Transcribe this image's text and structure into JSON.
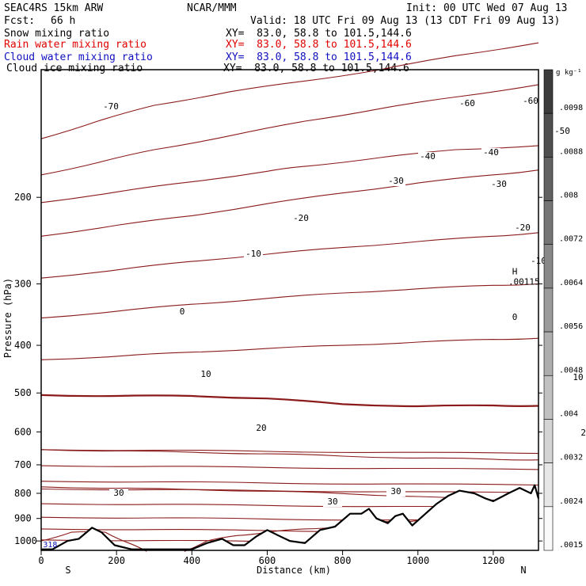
{
  "header": {
    "model": "SEAC4RS 15km ARW",
    "org": "NCAR/MMM",
    "init": "Init: 00 UTC Wed 07 Aug 13",
    "fcst_label": "Fcst:",
    "fcst_value": "66 h",
    "valid": "Valid: 18 UTC Fri 09 Aug 13 (13 CDT Fri 09 Aug 13)"
  },
  "fields": [
    {
      "name": "Snow mixing ratio",
      "xy": "XY=  83.0, 58.8 to 101.5,144.6",
      "color": "#000000"
    },
    {
      "name": "Rain water mixing ratio",
      "xy": "XY=  83.0, 58.8 to 101.5,144.6",
      "color": "#e00000"
    },
    {
      "name": "Cloud water mixing ratio",
      "xy": "XY=  83.0, 58.8 to 101.5,144.6",
      "color": "#1010c0"
    },
    {
      "name": "Cloud ice mixing ratio",
      "xy": "XY=  83.0, 58.8 to 101.5,144.6",
      "color": "#000000"
    }
  ],
  "chart_data": {
    "type": "line",
    "subtype": "vertical cross-section, temperature contours (deg C)",
    "xlabel": "Distance (km)",
    "ylabel": "Pressure (hPa)",
    "x_ticks": [
      0,
      200,
      400,
      600,
      800,
      1000,
      1200
    ],
    "y_ticks": [
      200,
      300,
      400,
      500,
      600,
      700,
      800,
      900,
      1000
    ],
    "xlim": [
      0,
      1320
    ],
    "ylim": [
      1045,
      110
    ],
    "y_scale": "log",
    "end_labels": {
      "left": "S",
      "right": "N"
    },
    "contour_color": "#8b1a1a",
    "isotherms": [
      {
        "level": -70,
        "label": "-70",
        "pts": [
          [
            0,
            152
          ],
          [
            150,
            140
          ],
          [
            300,
            130
          ],
          [
            500,
            122
          ],
          [
            700,
            116
          ],
          [
            900,
            110
          ],
          [
            1100,
            103
          ],
          [
            1320,
            97
          ]
        ],
        "labels": [
          [
            140,
            138
          ]
        ]
      },
      {
        "level": -60,
        "label": "-60",
        "pts": [
          [
            0,
            180
          ],
          [
            150,
            170
          ],
          [
            300,
            160
          ],
          [
            500,
            150
          ],
          [
            700,
            140
          ],
          [
            900,
            132
          ],
          [
            1100,
            125
          ],
          [
            1320,
            118
          ]
        ],
        "labels": [
          [
            590,
            134
          ],
          [
            670,
            131
          ]
        ]
      },
      {
        "level": -50,
        "label": "-50",
        "pts": [
          [
            0,
            205
          ],
          [
            200,
            195
          ],
          [
            400,
            186
          ],
          [
            600,
            177
          ],
          [
            700,
            173
          ],
          [
            900,
            166
          ],
          [
            1100,
            160
          ],
          [
            1320,
            157
          ]
        ],
        "labels": [
          [
            710,
            169
          ]
        ]
      },
      {
        "level": -40,
        "label": "-40",
        "pts": [
          [
            0,
            240
          ],
          [
            200,
            228
          ],
          [
            400,
            218
          ],
          [
            600,
            206
          ],
          [
            800,
            196
          ],
          [
            1000,
            187
          ],
          [
            1200,
            180
          ],
          [
            1320,
            176
          ]
        ],
        "labels": [
          [
            540,
            201
          ],
          [
            620,
            196
          ]
        ]
      },
      {
        "level": -30,
        "label": "-30",
        "pts": [
          [
            0,
            292
          ],
          [
            200,
            281
          ],
          [
            400,
            270
          ],
          [
            600,
            261
          ],
          [
            800,
            253
          ],
          [
            1000,
            246
          ],
          [
            1200,
            240
          ],
          [
            1320,
            236
          ]
        ],
        "labels": [
          [
            500,
            232
          ],
          [
            630,
            236
          ]
        ]
      },
      {
        "level": -20,
        "label": "-20",
        "pts": [
          [
            0,
            352
          ],
          [
            200,
            341
          ],
          [
            400,
            330
          ],
          [
            600,
            321
          ],
          [
            800,
            313
          ],
          [
            1000,
            307
          ],
          [
            1200,
            302
          ],
          [
            1320,
            300
          ]
        ],
        "labels": [
          [
            380,
            279
          ],
          [
            660,
            291
          ]
        ]
      },
      {
        "level": -10,
        "label": "-10",
        "pts": [
          [
            0,
            428
          ],
          [
            200,
            421
          ],
          [
            400,
            413
          ],
          [
            600,
            406
          ],
          [
            800,
            400
          ],
          [
            1000,
            394
          ],
          [
            1200,
            389
          ],
          [
            1320,
            387
          ]
        ],
        "labels": [
          [
            320,
            324
          ],
          [
            680,
            333
          ]
        ]
      },
      {
        "level": 0,
        "label": "0",
        "pts": [
          [
            0,
            505
          ],
          [
            200,
            507
          ],
          [
            400,
            507
          ],
          [
            600,
            513
          ],
          [
            800,
            527
          ],
          [
            1000,
            532
          ],
          [
            1200,
            530
          ],
          [
            1320,
            531
          ]
        ],
        "labels": [
          [
            230,
            397
          ],
          [
            650,
            404
          ]
        ],
        "bold": true
      },
      {
        "level": 10,
        "label": "10",
        "pts": [
          [
            0,
            652
          ],
          [
            200,
            656
          ],
          [
            400,
            660
          ],
          [
            600,
            665
          ],
          [
            800,
            672
          ],
          [
            1000,
            678
          ],
          [
            1200,
            682
          ],
          [
            1320,
            684
          ]
        ],
        "labels": [
          [
            260,
            476
          ],
          [
            730,
            480
          ]
        ]
      },
      {
        "level": 20,
        "label": "20",
        "pts": [
          [
            0,
            776
          ],
          [
            200,
            781
          ],
          [
            400,
            786
          ],
          [
            600,
            792
          ],
          [
            800,
            801
          ],
          [
            1000,
            812
          ],
          [
            1200,
            826
          ],
          [
            1320,
            820
          ]
        ],
        "labels": [
          [
            330,
            544
          ],
          [
            740,
            550
          ],
          [
            1195,
            528
          ]
        ]
      },
      {
        "level": 30,
        "label": "30",
        "pts": [
          [
            0,
            1000
          ],
          [
            80,
            960
          ],
          [
            170,
            960
          ],
          [
            230,
            1008
          ],
          [
            280,
            1050
          ]
        ],
        "labels": [
          [
            150,
            626
          ]
        ]
      },
      {
        "level": 30,
        "label": "30",
        "pts": [
          [
            380,
            1050
          ],
          [
            440,
            1000
          ],
          [
            520,
            975
          ],
          [
            600,
            960
          ],
          [
            700,
            945
          ],
          [
            800,
            935
          ]
        ],
        "labels": [
          [
            420,
            637
          ],
          [
            500,
            624
          ]
        ]
      },
      {
        "level": 30,
        "label": "30",
        "pts": [
          [
            860,
            900
          ],
          [
            900,
            915
          ],
          [
            960,
            915
          ],
          [
            1010,
            905
          ]
        ],
        "labels": [
          [
            920,
            607
          ]
        ]
      }
    ],
    "wave_lines": [
      652,
      703,
      756,
      784,
      840,
      895,
      945,
      995
    ],
    "terrain_km_hpa": [
      [
        0,
        1040
      ],
      [
        30,
        1040
      ],
      [
        70,
        1000
      ],
      [
        100,
        990
      ],
      [
        135,
        940
      ],
      [
        160,
        960
      ],
      [
        195,
        1020
      ],
      [
        240,
        1040
      ],
      [
        400,
        1040
      ],
      [
        440,
        1010
      ],
      [
        480,
        990
      ],
      [
        510,
        1020
      ],
      [
        540,
        1020
      ],
      [
        570,
        980
      ],
      [
        600,
        950
      ],
      [
        630,
        975
      ],
      [
        660,
        1000
      ],
      [
        700,
        1010
      ],
      [
        740,
        950
      ],
      [
        780,
        935
      ],
      [
        820,
        880
      ],
      [
        850,
        880
      ],
      [
        870,
        860
      ],
      [
        890,
        900
      ],
      [
        920,
        920
      ],
      [
        940,
        890
      ],
      [
        960,
        880
      ],
      [
        985,
        930
      ],
      [
        1020,
        880
      ],
      [
        1050,
        840
      ],
      [
        1080,
        810
      ],
      [
        1110,
        790
      ],
      [
        1150,
        800
      ],
      [
        1180,
        820
      ],
      [
        1200,
        830
      ],
      [
        1240,
        800
      ],
      [
        1270,
        780
      ],
      [
        1300,
        800
      ],
      [
        1310,
        770
      ],
      [
        1320,
        820
      ]
    ],
    "annotations": [
      {
        "text": "H",
        "x": 1250,
        "y": 287
      },
      {
        "text": ".00115",
        "x": 1240,
        "y": 301
      },
      {
        "text": "318",
        "x": 5,
        "y": 1030
      }
    ],
    "colorbar": {
      "unit": "g kg⁻¹",
      "labels": [
        ".0098",
        ".0088",
        ".008",
        ".0072",
        ".0064",
        ".0056",
        ".0048",
        ".004",
        ".0032",
        ".0024",
        ".0015"
      ]
    }
  }
}
